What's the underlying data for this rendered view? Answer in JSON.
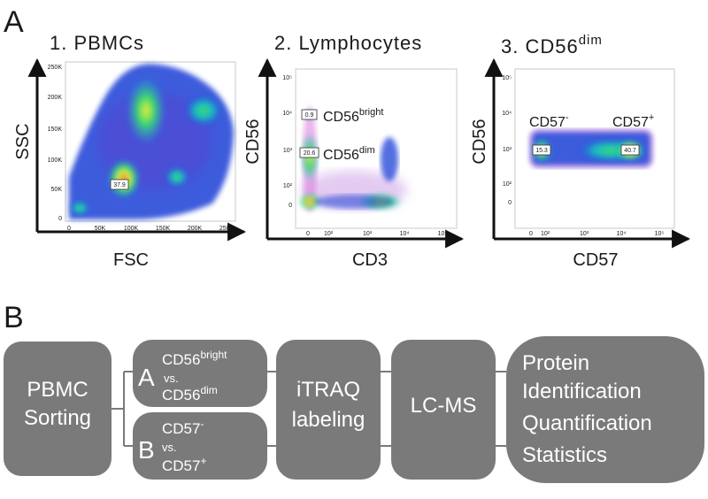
{
  "panel_a": {
    "label": "A",
    "plots": [
      {
        "title_main": "1. PBMCs",
        "title_sup": "",
        "xlabel": "FSC",
        "ylabel": "SSC",
        "xticks": [
          "0",
          "50K",
          "100K",
          "150K",
          "200K",
          "250K"
        ],
        "yticks": [
          "0",
          "50K",
          "100K",
          "150K",
          "200K",
          "250K"
        ],
        "gates": [
          {
            "label": "37.9"
          }
        ],
        "annotations": []
      },
      {
        "title_main": "2. Lymphocytes",
        "title_sup": "",
        "xlabel": "CD3",
        "ylabel": "CD56",
        "xticks": [
          "0",
          "10²",
          "10³",
          "10⁴",
          "10⁵"
        ],
        "yticks": [
          "0",
          "10²",
          "10³",
          "10⁴",
          "10⁵"
        ],
        "gates": [
          {
            "label": "0.9"
          },
          {
            "label": "20.6"
          }
        ],
        "annotations": [
          {
            "base": "CD56",
            "sup": "bright"
          },
          {
            "base": "CD56",
            "sup": "dim"
          }
        ]
      },
      {
        "title_main": "3. CD56",
        "title_sup": "dim",
        "xlabel": "CD57",
        "ylabel": "CD56",
        "xticks": [
          "0",
          "10²",
          "10³",
          "10⁴",
          "10⁵"
        ],
        "yticks": [
          "0",
          "10²",
          "10³",
          "10⁴",
          "10⁵"
        ],
        "gates": [
          {
            "label": "15.3"
          },
          {
            "label": "40.7"
          }
        ],
        "annotations": [
          {
            "base": "CD57",
            "sup": "-"
          },
          {
            "base": "CD57",
            "sup": "+"
          }
        ]
      }
    ]
  },
  "panel_b": {
    "label": "B",
    "pbmc_sorting": [
      "PBMC",
      "Sorting"
    ],
    "comparison_a": {
      "letter": "A",
      "line1_base": "CD56",
      "line1_sup": "bright",
      "vs": "vs.",
      "line2_base": "CD56",
      "line2_sup": "dim"
    },
    "comparison_b": {
      "letter": "B",
      "line1_base": "CD57",
      "line1_sup": "-",
      "vs": "vs.",
      "line2_base": "CD57",
      "line2_sup": "+"
    },
    "itraq": [
      "iTRAQ",
      "labeling"
    ],
    "lcms": "LC-MS",
    "protein": [
      "Protein",
      "Identification",
      "Quantification",
      "Statistics"
    ]
  },
  "colors": {
    "box": "#7a7a7a",
    "box_text": "#ffffff",
    "arrow": "#111111",
    "cloud_blue": "#1f3fd6",
    "cloud_cyan": "#17b8c8",
    "cloud_green": "#3ddc6a",
    "cloud_yellow": "#f2e93a",
    "cloud_red": "#e23a1f",
    "cloud_purple": "#b06ad8"
  }
}
